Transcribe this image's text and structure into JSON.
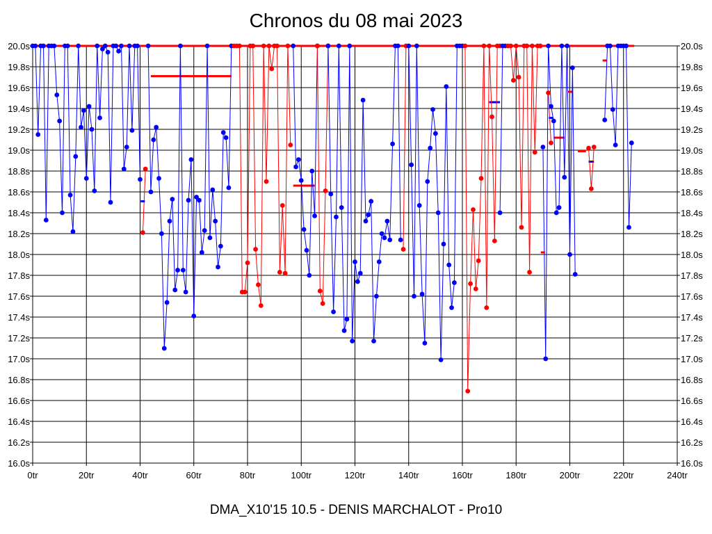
{
  "chart_data": {
    "type": "line",
    "title": "Chronos du 08 mai 2023",
    "subtitle": "DMA_X10'15 10.5 - DENIS MARCHALOT - Pro10",
    "xlim": [
      0,
      240
    ],
    "ylim": [
      16.0,
      20.0
    ],
    "x_ticks": [
      "0tr",
      "20tr",
      "40tr",
      "60tr",
      "80tr",
      "100tr",
      "120tr",
      "140tr",
      "160tr",
      "180tr",
      "200tr",
      "220tr",
      "240tr"
    ],
    "y_ticks": [
      "16.0s",
      "16.2s",
      "16.4s",
      "16.6s",
      "16.8s",
      "17.0s",
      "17.2s",
      "17.4s",
      "17.6s",
      "17.8s",
      "18.0s",
      "18.2s",
      "18.4s",
      "18.6s",
      "18.8s",
      "19.0s",
      "19.2s",
      "19.4s",
      "19.6s",
      "19.8s",
      "20.0s"
    ],
    "grid": true,
    "colors": {
      "blue": "#0000ff",
      "red": "#ff0000"
    },
    "segments": [
      {
        "color": "blue",
        "points": [
          [
            0,
            20
          ],
          [
            1,
            20
          ],
          [
            2,
            19.15
          ],
          [
            3,
            20
          ],
          [
            4,
            20
          ],
          [
            5,
            18.33
          ],
          [
            6,
            20
          ],
          [
            7,
            20
          ],
          [
            8,
            20
          ],
          [
            9,
            19.53
          ],
          [
            10,
            19.28
          ],
          [
            11,
            18.4
          ],
          [
            12,
            20
          ],
          [
            13,
            20
          ],
          [
            14,
            18.57
          ],
          [
            15,
            18.22
          ],
          [
            16,
            18.94
          ],
          [
            17,
            20
          ],
          [
            18,
            19.22
          ],
          [
            19,
            19.38
          ],
          [
            20,
            18.73
          ],
          [
            21,
            19.42
          ],
          [
            22,
            19.2
          ],
          [
            23,
            18.61
          ],
          [
            24,
            20
          ],
          [
            25,
            19.31
          ],
          [
            26,
            19.97
          ],
          [
            27,
            20
          ],
          [
            28,
            19.94
          ],
          [
            29,
            18.5
          ],
          [
            30,
            20
          ],
          [
            31,
            20
          ],
          [
            32,
            19.95
          ],
          [
            33,
            20
          ],
          [
            34,
            18.82
          ],
          [
            35,
            19.03
          ],
          [
            36,
            20
          ],
          [
            37,
            19.19
          ],
          [
            38,
            20
          ],
          [
            39,
            20
          ],
          [
            40,
            18.72
          ]
        ]
      },
      {
        "color": "red",
        "points": [
          [
            41,
            18.21
          ],
          [
            42,
            18.82
          ]
        ]
      },
      {
        "color": "blue",
        "points": [
          [
            43,
            20
          ],
          [
            44,
            18.6
          ],
          [
            45,
            19.1
          ],
          [
            46,
            19.22
          ],
          [
            47,
            18.73
          ],
          [
            48,
            18.2
          ],
          [
            49,
            17.1
          ],
          [
            50,
            17.54
          ],
          [
            51,
            18.32
          ],
          [
            52,
            18.53
          ],
          [
            53,
            17.66
          ],
          [
            54,
            17.85
          ],
          [
            55,
            20
          ],
          [
            56,
            17.85
          ],
          [
            57,
            17.64
          ],
          [
            58,
            18.52
          ],
          [
            59,
            18.91
          ],
          [
            60,
            17.41
          ],
          [
            61,
            18.55
          ],
          [
            62,
            18.52
          ],
          [
            63,
            18.02
          ],
          [
            64,
            18.23
          ],
          [
            65,
            20
          ],
          [
            66,
            18.16
          ],
          [
            67,
            18.62
          ],
          [
            68,
            18.32
          ],
          [
            69,
            17.88
          ],
          [
            70,
            18.08
          ],
          [
            71,
            19.17
          ],
          [
            72,
            19.12
          ],
          [
            73,
            18.64
          ],
          [
            74,
            20
          ]
        ]
      },
      {
        "color": "red",
        "points": [
          [
            75,
            20
          ],
          [
            76,
            20
          ],
          [
            77,
            20
          ],
          [
            78,
            17.64
          ],
          [
            79,
            17.64
          ],
          [
            80,
            17.92
          ],
          [
            81,
            20
          ],
          [
            82,
            20
          ],
          [
            83,
            18.05
          ],
          [
            84,
            17.71
          ],
          [
            85,
            17.51
          ],
          [
            86,
            20
          ],
          [
            87,
            18.7
          ],
          [
            88,
            20
          ],
          [
            89,
            19.78
          ],
          [
            90,
            20
          ],
          [
            91,
            20
          ],
          [
            92,
            17.83
          ],
          [
            93,
            18.47
          ],
          [
            94,
            17.82
          ],
          [
            95,
            20
          ],
          [
            96,
            19.05
          ]
        ]
      },
      {
        "color": "blue",
        "points": [
          [
            97,
            20
          ],
          [
            98,
            18.84
          ],
          [
            99,
            18.91
          ],
          [
            100,
            18.71
          ],
          [
            101,
            18.24
          ],
          [
            102,
            18.04
          ],
          [
            103,
            17.8
          ],
          [
            104,
            18.8
          ],
          [
            105,
            18.37
          ],
          [
            106,
            20
          ]
        ]
      },
      {
        "color": "red",
        "points": [
          [
            106,
            20
          ],
          [
            107,
            17.65
          ],
          [
            108,
            17.53
          ],
          [
            109,
            18.61
          ],
          [
            110,
            20
          ]
        ]
      },
      {
        "color": "blue",
        "points": [
          [
            110,
            20
          ],
          [
            111,
            18.58
          ],
          [
            112,
            17.45
          ],
          [
            113,
            18.36
          ],
          [
            114,
            20
          ],
          [
            115,
            18.45
          ],
          [
            116,
            17.27
          ],
          [
            117,
            17.38
          ],
          [
            118,
            20
          ],
          [
            119,
            17.17
          ],
          [
            120,
            17.93
          ],
          [
            121,
            17.74
          ],
          [
            122,
            17.82
          ],
          [
            123,
            19.48
          ],
          [
            124,
            18.32
          ],
          [
            125,
            18.38
          ],
          [
            126,
            18.51
          ],
          [
            127,
            17.17
          ],
          [
            128,
            17.6
          ],
          [
            129,
            17.93
          ],
          [
            130,
            18.2
          ],
          [
            131,
            18.16
          ],
          [
            132,
            18.32
          ],
          [
            133,
            18.14
          ],
          [
            134,
            19.06
          ],
          [
            135,
            20
          ],
          [
            136,
            20
          ],
          [
            137,
            18.14
          ]
        ]
      },
      {
        "color": "red",
        "points": [
          [
            138,
            18.05
          ],
          [
            139,
            20
          ]
        ]
      },
      {
        "color": "blue",
        "points": [
          [
            140,
            20
          ],
          [
            141,
            18.86
          ],
          [
            142,
            17.6
          ],
          [
            143,
            20
          ],
          [
            144,
            18.47
          ],
          [
            145,
            17.62
          ],
          [
            146,
            17.15
          ],
          [
            147,
            18.7
          ],
          [
            148,
            19.02
          ],
          [
            149,
            19.39
          ],
          [
            150,
            19.16
          ],
          [
            151,
            18.4
          ],
          [
            152,
            16.99
          ],
          [
            153,
            18.1
          ],
          [
            154,
            19.61
          ],
          [
            155,
            17.9
          ],
          [
            156,
            17.49
          ],
          [
            157,
            17.73
          ],
          [
            158,
            20
          ],
          [
            159,
            20
          ],
          [
            160,
            20
          ]
        ]
      },
      {
        "color": "red",
        "points": [
          [
            161,
            20
          ],
          [
            162,
            16.69
          ],
          [
            163,
            17.72
          ],
          [
            164,
            18.43
          ],
          [
            165,
            17.67
          ],
          [
            166,
            17.94
          ],
          [
            167,
            18.73
          ],
          [
            168,
            20
          ],
          [
            169,
            17.49
          ],
          [
            170,
            20
          ],
          [
            171,
            19.32
          ],
          [
            172,
            18.13
          ],
          [
            173,
            20
          ],
          [
            174,
            20
          ]
        ]
      },
      {
        "color": "blue",
        "points": [
          [
            174,
            18.4
          ],
          [
            175,
            20
          ],
          [
            176,
            20
          ]
        ]
      },
      {
        "color": "red",
        "points": [
          [
            177,
            20
          ],
          [
            178,
            20
          ],
          [
            179,
            19.67
          ],
          [
            180,
            20
          ],
          [
            181,
            19.7
          ],
          [
            182,
            18.26
          ],
          [
            183,
            20
          ],
          [
            184,
            20
          ],
          [
            185,
            17.83
          ],
          [
            186,
            20
          ],
          [
            187,
            18.98
          ],
          [
            188,
            20
          ],
          [
            189,
            20
          ]
        ]
      },
      {
        "color": "blue",
        "points": [
          [
            190,
            19.03
          ],
          [
            191,
            17.0
          ],
          [
            192,
            20
          ],
          [
            193,
            19.42
          ],
          [
            194,
            19.28
          ],
          [
            195,
            18.4
          ],
          [
            196,
            18.45
          ],
          [
            197,
            20
          ],
          [
            198,
            18.74
          ],
          [
            199,
            20
          ],
          [
            200,
            18.0
          ],
          [
            201,
            19.79
          ],
          [
            202,
            17.81
          ]
        ]
      },
      {
        "color": "red",
        "points": [
          [
            192,
            19.55
          ],
          [
            193,
            19.07
          ]
        ]
      },
      {
        "color": "red",
        "points": [
          [
            207,
            19.02
          ],
          [
            208,
            18.63
          ],
          [
            209,
            19.03
          ]
        ]
      },
      {
        "color": "blue",
        "points": [
          [
            213,
            19.29
          ],
          [
            214,
            20
          ],
          [
            215,
            20
          ],
          [
            216,
            19.39
          ],
          [
            217,
            19.05
          ],
          [
            218,
            20
          ],
          [
            219,
            20
          ],
          [
            220,
            20
          ],
          [
            221,
            20
          ],
          [
            222,
            18.26
          ],
          [
            223,
            19.07
          ]
        ]
      }
    ],
    "flat_lines": [
      {
        "color": "red",
        "x": [
          0,
          224
        ],
        "y": 20.0
      },
      {
        "color": "red",
        "x": [
          44,
          74
        ],
        "y": 19.71
      },
      {
        "color": "red",
        "x": [
          97,
          105
        ],
        "y": 18.66
      },
      {
        "color": "blue",
        "x": [
          170,
          174
        ],
        "y": 19.46
      },
      {
        "color": "red",
        "x": [
          194,
          198
        ],
        "y": 19.12
      },
      {
        "color": "red",
        "x": [
          203,
          206
        ],
        "y": 18.99
      },
      {
        "color": "blue",
        "x": [
          207,
          209
        ],
        "y": 18.89
      }
    ],
    "marker_dashes": [
      {
        "color": "blue",
        "x": 41,
        "y": 18.51
      },
      {
        "color": "red",
        "x": 190,
        "y": 18.02
      },
      {
        "color": "blue",
        "x": 193,
        "y": 19.31
      },
      {
        "color": "red",
        "x": 200,
        "y": 19.56
      },
      {
        "color": "red",
        "x": 213,
        "y": 19.86
      }
    ]
  }
}
